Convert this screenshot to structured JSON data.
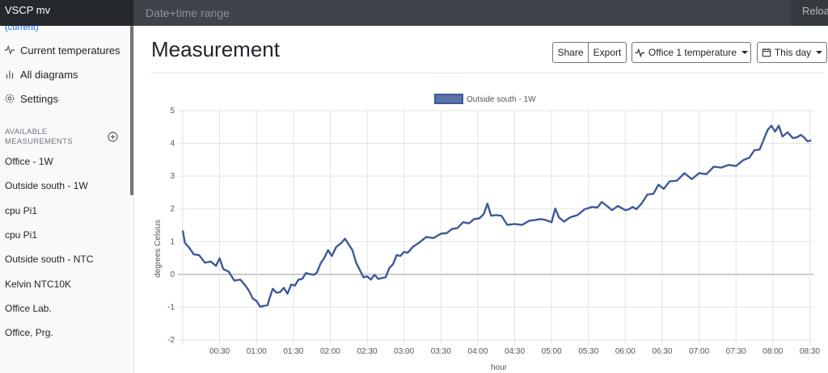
{
  "header": {
    "brand": "VSCP mv",
    "range_placeholder": "Date+time range",
    "reload_label": "Reloa"
  },
  "sidebar": {
    "current_label": "(current)",
    "nav": [
      {
        "label": "Current temperatures",
        "icon": "activity-icon"
      },
      {
        "label": "All diagrams",
        "icon": "bar-chart-icon"
      },
      {
        "label": "Settings",
        "icon": "gear-icon"
      }
    ],
    "section_title_line1": "AVAILABLE",
    "section_title_line2": "MEASUREMENTS",
    "measurements": [
      "Office - 1W",
      "Outside south - 1W",
      "cpu Pi1",
      "cpu Pi1",
      "Outside south - NTC",
      "Kelvin NTC10K",
      "Office Lab.",
      "Office, Prg."
    ]
  },
  "main": {
    "title": "Measurement",
    "share_label": "Share",
    "export_label": "Export",
    "sensor_select": "Office 1 temperature",
    "period_select": "This day"
  },
  "chart_data": {
    "type": "line",
    "series": [
      {
        "name": "Outside south - 1W",
        "color": "#3d5a99",
        "points": [
          [
            0.0,
            1.3
          ],
          [
            0.03,
            1.0
          ],
          [
            0.08,
            0.8
          ],
          [
            0.15,
            0.65
          ],
          [
            0.22,
            0.55
          ],
          [
            0.3,
            0.4
          ],
          [
            0.38,
            0.35
          ],
          [
            0.45,
            0.3
          ],
          [
            0.5,
            0.45
          ],
          [
            0.55,
            0.2
          ],
          [
            0.62,
            0.05
          ],
          [
            0.7,
            -0.15
          ],
          [
            0.78,
            -0.2
          ],
          [
            0.85,
            -0.3
          ],
          [
            0.9,
            -0.55
          ],
          [
            0.95,
            -0.7
          ],
          [
            1.0,
            -0.85
          ],
          [
            1.05,
            -0.95
          ],
          [
            1.1,
            -1.0
          ],
          [
            1.15,
            -0.9
          ],
          [
            1.18,
            -0.75
          ],
          [
            1.22,
            -0.4
          ],
          [
            1.27,
            -0.6
          ],
          [
            1.32,
            -0.5
          ],
          [
            1.37,
            -0.45
          ],
          [
            1.42,
            -0.55
          ],
          [
            1.47,
            -0.35
          ],
          [
            1.52,
            -0.3
          ],
          [
            1.57,
            -0.2
          ],
          [
            1.62,
            -0.1
          ],
          [
            1.67,
            0.0
          ],
          [
            1.72,
            0.05
          ],
          [
            1.78,
            -0.05
          ],
          [
            1.82,
            0.1
          ],
          [
            1.87,
            0.3
          ],
          [
            1.92,
            0.55
          ],
          [
            1.97,
            0.7
          ],
          [
            2.02,
            0.6
          ],
          [
            2.08,
            0.8
          ],
          [
            2.15,
            1.0
          ],
          [
            2.2,
            1.05
          ],
          [
            2.25,
            0.95
          ],
          [
            2.3,
            0.7
          ],
          [
            2.35,
            0.4
          ],
          [
            2.4,
            0.1
          ],
          [
            2.45,
            -0.05
          ],
          [
            2.5,
            -0.1
          ],
          [
            2.55,
            -0.12
          ],
          [
            2.6,
            -0.05
          ],
          [
            2.65,
            -0.1
          ],
          [
            2.7,
            -0.15
          ],
          [
            2.75,
            -0.05
          ],
          [
            2.8,
            0.15
          ],
          [
            2.85,
            0.35
          ],
          [
            2.9,
            0.55
          ],
          [
            2.95,
            0.6
          ],
          [
            3.0,
            0.65
          ],
          [
            3.05,
            0.7
          ],
          [
            3.12,
            0.8
          ],
          [
            3.2,
            1.0
          ],
          [
            3.3,
            1.1
          ],
          [
            3.4,
            1.15
          ],
          [
            3.5,
            1.2
          ],
          [
            3.58,
            1.3
          ],
          [
            3.65,
            1.35
          ],
          [
            3.72,
            1.45
          ],
          [
            3.8,
            1.55
          ],
          [
            3.88,
            1.6
          ],
          [
            3.95,
            1.65
          ],
          [
            4.02,
            1.75
          ],
          [
            4.08,
            1.8
          ],
          [
            4.13,
            2.2
          ],
          [
            4.18,
            1.75
          ],
          [
            4.25,
            1.85
          ],
          [
            4.32,
            1.75
          ],
          [
            4.4,
            1.55
          ],
          [
            4.5,
            1.5
          ],
          [
            4.6,
            1.55
          ],
          [
            4.7,
            1.6
          ],
          [
            4.78,
            1.7
          ],
          [
            4.85,
            1.65
          ],
          [
            4.92,
            1.7
          ],
          [
            5.0,
            1.55
          ],
          [
            5.05,
            2.05
          ],
          [
            5.1,
            1.7
          ],
          [
            5.17,
            1.65
          ],
          [
            5.25,
            1.7
          ],
          [
            5.35,
            1.85
          ],
          [
            5.45,
            1.95
          ],
          [
            5.55,
            2.1
          ],
          [
            5.62,
            2.0
          ],
          [
            5.68,
            2.25
          ],
          [
            5.75,
            2.05
          ],
          [
            5.82,
            2.0
          ],
          [
            5.9,
            2.05
          ],
          [
            6.0,
            2.0
          ],
          [
            6.05,
            1.95
          ],
          [
            6.1,
            2.1
          ],
          [
            6.15,
            1.95
          ],
          [
            6.22,
            2.2
          ],
          [
            6.3,
            2.4
          ],
          [
            6.38,
            2.5
          ],
          [
            6.45,
            2.7
          ],
          [
            6.52,
            2.65
          ],
          [
            6.6,
            2.8
          ],
          [
            6.7,
            2.9
          ],
          [
            6.8,
            3.05
          ],
          [
            6.9,
            2.95
          ],
          [
            7.0,
            3.05
          ],
          [
            7.1,
            3.1
          ],
          [
            7.2,
            3.25
          ],
          [
            7.3,
            3.3
          ],
          [
            7.4,
            3.3
          ],
          [
            7.5,
            3.35
          ],
          [
            7.6,
            3.45
          ],
          [
            7.68,
            3.6
          ],
          [
            7.75,
            3.75
          ],
          [
            7.82,
            3.85
          ],
          [
            7.88,
            4.1
          ],
          [
            7.93,
            4.45
          ],
          [
            7.98,
            4.5
          ],
          [
            8.03,
            4.4
          ],
          [
            8.08,
            4.5
          ],
          [
            8.13,
            4.25
          ],
          [
            8.2,
            4.3
          ],
          [
            8.27,
            4.2
          ],
          [
            8.33,
            4.15
          ],
          [
            8.38,
            4.3
          ],
          [
            8.42,
            4.15
          ],
          [
            8.47,
            4.1
          ],
          [
            8.52,
            4.05
          ]
        ]
      }
    ],
    "xlabel": "hour",
    "ylabel": "degrees Celsius",
    "x_ticks": [
      "00:30",
      "01:00",
      "01:30",
      "02:00",
      "02:30",
      "03:00",
      "03:30",
      "04:00",
      "04:30",
      "05:00",
      "05:30",
      "06:00",
      "06:30",
      "07:00",
      "07:30",
      "08:00",
      "08:30"
    ],
    "x_range": [
      0,
      8.55
    ],
    "ylim": [
      -2,
      5
    ],
    "y_ticks": [
      "5",
      "4",
      "3",
      "2",
      "1",
      "0",
      "-1",
      "-2"
    ],
    "grid": true,
    "legend_position": "top-center"
  }
}
